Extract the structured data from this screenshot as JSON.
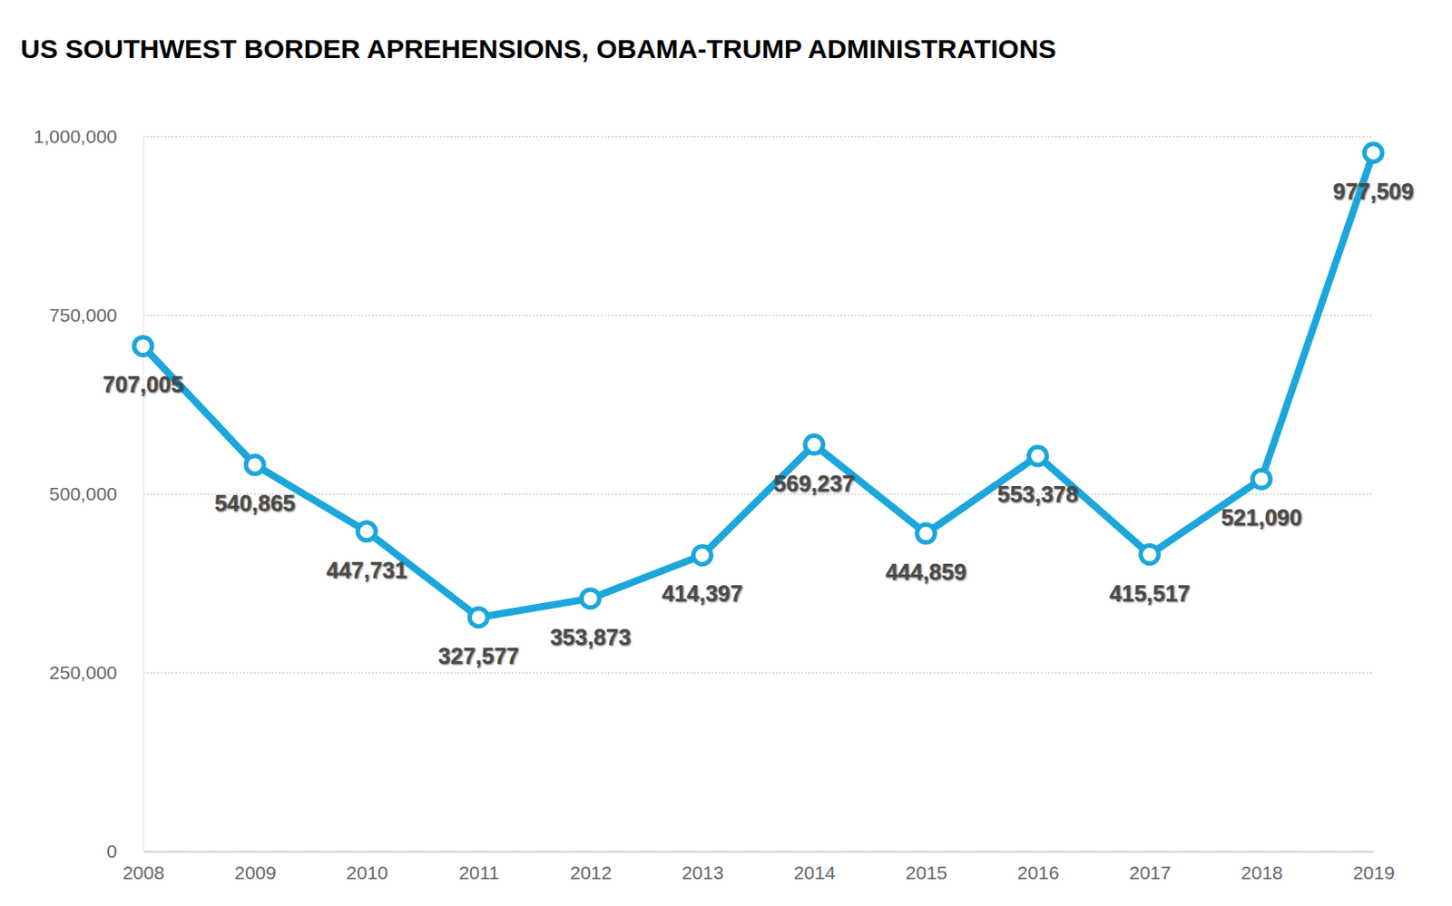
{
  "chart_data": {
    "type": "line",
    "title": "US SOUTHWEST BORDER APREHENSIONS, OBAMA-TRUMP ADMINISTRATIONS",
    "categories": [
      "2008",
      "2009",
      "2010",
      "2011",
      "2012",
      "2013",
      "2014",
      "2015",
      "2016",
      "2017",
      "2018",
      "2019"
    ],
    "values": [
      707005,
      540865,
      447731,
      327577,
      353873,
      414397,
      569237,
      444859,
      553378,
      415517,
      521090,
      977509
    ],
    "value_labels": [
      "707,005",
      "540,865",
      "447,731",
      "327,577",
      "353,873",
      "414,397",
      "569,237",
      "444,859",
      "553,378",
      "415,517",
      "521,090",
      "977,509"
    ],
    "color": "#1ba6dc",
    "marker": "circle",
    "ylim": [
      0,
      1000000
    ],
    "yticks": [
      0,
      {
        "value": 250000,
        "label": "250,000"
      },
      {
        "value": 500000,
        "label": "500,000"
      },
      {
        "value": 750000,
        "label": "750,000"
      },
      {
        "value": 1000000,
        "label": "1,000,000"
      }
    ],
    "grid": true,
    "data_labels": true
  }
}
